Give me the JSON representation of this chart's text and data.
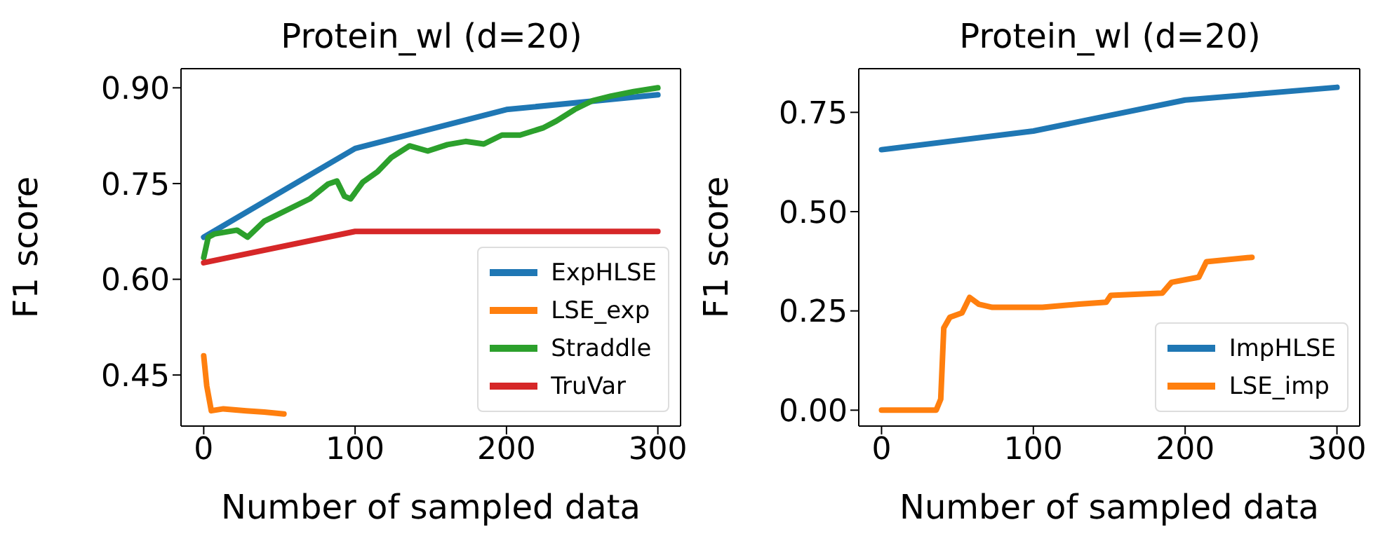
{
  "chart_data": [
    {
      "type": "line",
      "title": "Protein_wl (d=20)",
      "xlabel": "Number of sampled data",
      "ylabel": "F1 score",
      "xlim": [
        -15,
        315
      ],
      "xticks": [
        0,
        100,
        200,
        300
      ],
      "ylim": [
        0.37,
        0.93
      ],
      "yticks": [
        {
          "value": 0.45,
          "label": "0.45"
        },
        {
          "value": 0.6,
          "label": "0.60"
        },
        {
          "value": 0.75,
          "label": "0.75"
        },
        {
          "value": 0.9,
          "label": "0.90"
        }
      ],
      "legend": "bottom right",
      "marker": "none",
      "line_style": "solid",
      "series": [
        {
          "name": "ExpHLSE",
          "color": "#1f77b4",
          "x": [
            0,
            100,
            200,
            300
          ],
          "values": [
            0.666,
            0.805,
            0.866,
            0.889
          ]
        },
        {
          "name": "LSE_exp",
          "color": "#ff7f0e",
          "x": [
            0,
            2,
            5,
            13,
            28,
            40,
            53
          ],
          "values": [
            0.48,
            0.433,
            0.394,
            0.397,
            0.394,
            0.392,
            0.389
          ]
        },
        {
          "name": "Straddle",
          "color": "#2ca02c",
          "x": [
            0,
            3,
            7,
            22,
            29,
            40,
            58,
            70,
            82,
            88,
            93,
            97,
            105,
            115,
            124,
            136,
            148,
            161,
            173,
            185,
            197,
            209,
            224,
            233,
            245,
            257,
            269,
            284,
            300
          ],
          "values": [
            0.634,
            0.666,
            0.671,
            0.677,
            0.666,
            0.691,
            0.712,
            0.726,
            0.749,
            0.754,
            0.73,
            0.726,
            0.752,
            0.769,
            0.791,
            0.809,
            0.801,
            0.811,
            0.816,
            0.812,
            0.826,
            0.826,
            0.837,
            0.848,
            0.866,
            0.88,
            0.887,
            0.894,
            0.9
          ]
        },
        {
          "name": "TruVar",
          "color": "#d62728",
          "x": [
            0,
            100,
            300
          ],
          "values": [
            0.626,
            0.675,
            0.675
          ]
        }
      ]
    },
    {
      "type": "line",
      "title": "Protein_wl (d=20)",
      "xlabel": "Number of sampled data",
      "ylabel": "F1 score",
      "xlim": [
        -15,
        315
      ],
      "xticks": [
        0,
        100,
        200,
        300
      ],
      "ylim": [
        -0.04,
        0.86
      ],
      "yticks": [
        {
          "value": 0,
          "label": "0.00"
        },
        {
          "value": 0.25,
          "label": "0.25"
        },
        {
          "value": 0.5,
          "label": "0.50"
        },
        {
          "value": 0.75,
          "label": "0.75"
        }
      ],
      "legend": "bottom right",
      "marker": "none",
      "line_style": "solid",
      "series": [
        {
          "name": "ImpHLSE",
          "color": "#1f77b4",
          "x": [
            0,
            100,
            200,
            300
          ],
          "values": [
            0.656,
            0.703,
            0.781,
            0.813
          ]
        },
        {
          "name": "LSE_imp",
          "color": "#ff7f0e",
          "x": [
            0,
            36,
            39,
            41,
            45,
            53,
            58,
            64,
            73,
            106,
            130,
            148,
            151,
            185,
            191,
            209,
            214,
            244
          ],
          "values": [
            0,
            0,
            0.028,
            0.207,
            0.234,
            0.245,
            0.284,
            0.267,
            0.259,
            0.259,
            0.267,
            0.272,
            0.289,
            0.295,
            0.322,
            0.335,
            0.374,
            0.385
          ]
        }
      ]
    }
  ]
}
